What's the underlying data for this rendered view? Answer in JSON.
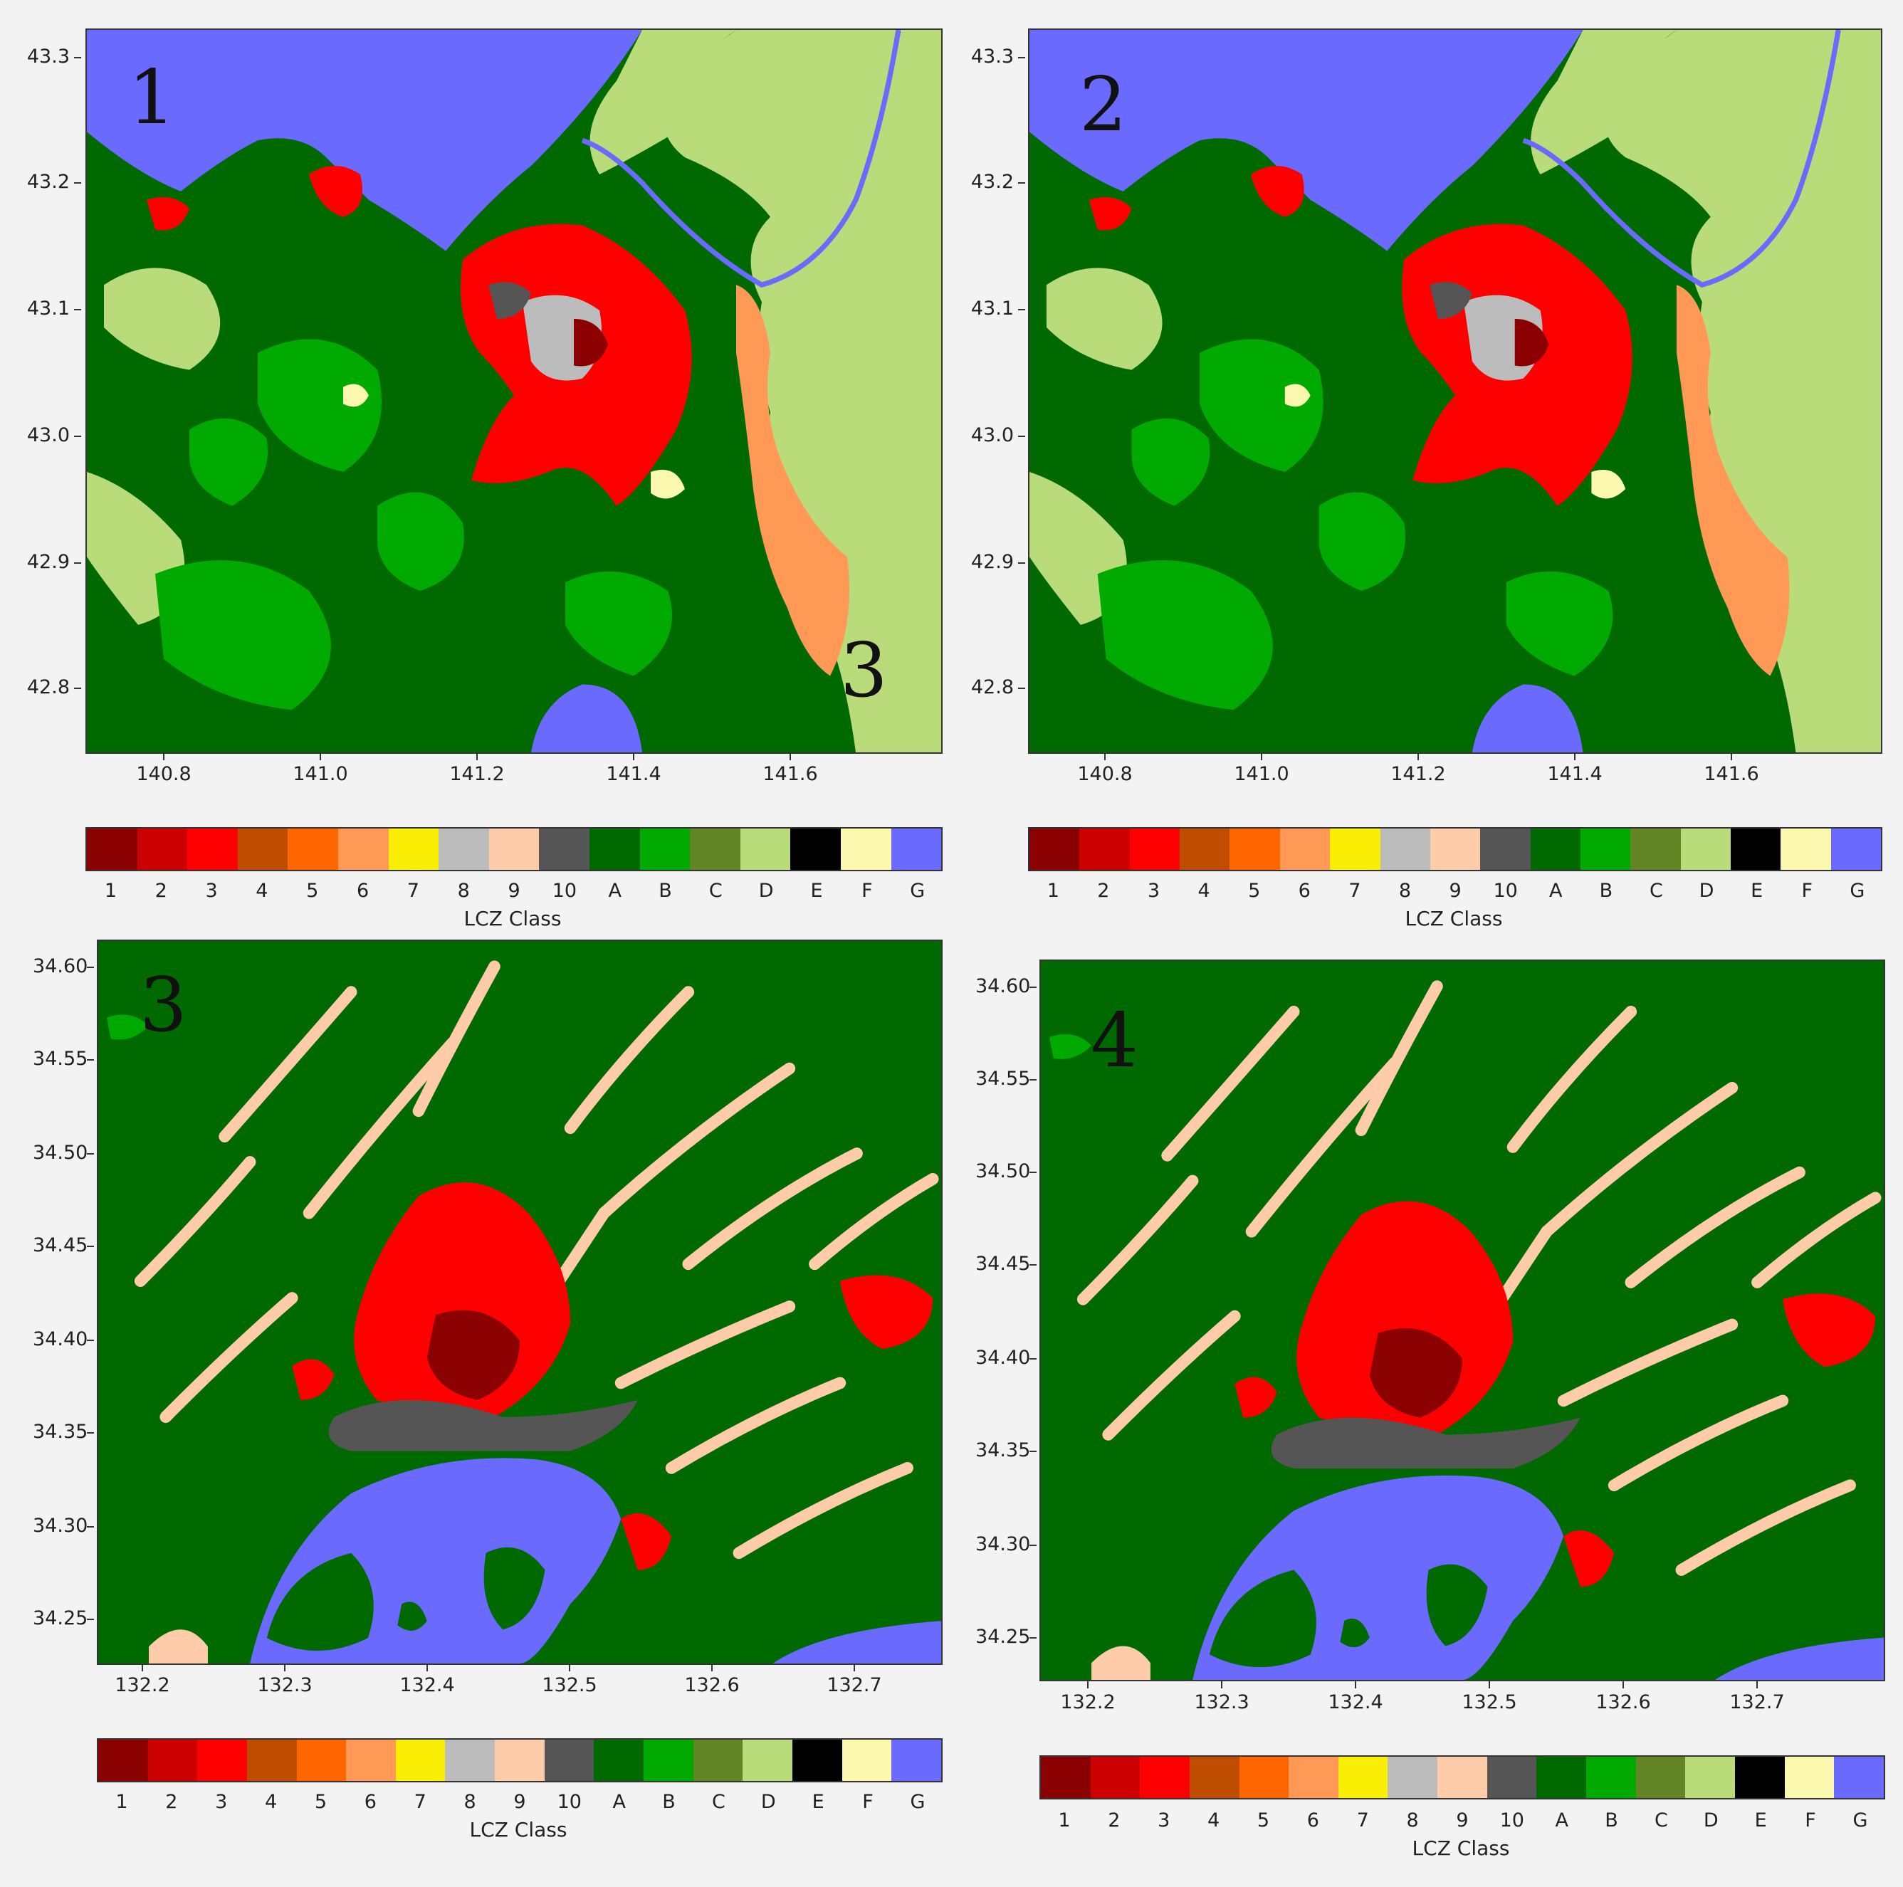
{
  "colorbar": {
    "title": "LCZ Class",
    "classes": [
      {
        "label": "1",
        "color": "#8b0000"
      },
      {
        "label": "2",
        "color": "#cc0000"
      },
      {
        "label": "3",
        "color": "#ff0000"
      },
      {
        "label": "4",
        "color": "#bf4d00"
      },
      {
        "label": "5",
        "color": "#ff6600"
      },
      {
        "label": "6",
        "color": "#ff9955"
      },
      {
        "label": "7",
        "color": "#faee05"
      },
      {
        "label": "8",
        "color": "#bcbcbc"
      },
      {
        "label": "9",
        "color": "#ffccaa"
      },
      {
        "label": "10",
        "color": "#555555"
      },
      {
        "label": "A",
        "color": "#006a00"
      },
      {
        "label": "B",
        "color": "#00aa00"
      },
      {
        "label": "C",
        "color": "#648525"
      },
      {
        "label": "D",
        "color": "#b9db79"
      },
      {
        "label": "E",
        "color": "#000000"
      },
      {
        "label": "F",
        "color": "#fbf7ae"
      },
      {
        "label": "G",
        "color": "#6a6aff"
      }
    ]
  },
  "panels": [
    {
      "number": "1",
      "inset_number": "3",
      "y_ticks": [
        "43.3",
        "43.2",
        "43.1",
        "43.0",
        "42.9",
        "42.8"
      ],
      "x_ticks": [
        "140.8",
        "141.0",
        "141.2",
        "141.4",
        "141.6"
      ]
    },
    {
      "number": "2",
      "y_ticks": [
        "43.3",
        "43.2",
        "43.1",
        "43.0",
        "42.9",
        "42.8"
      ],
      "x_ticks": [
        "140.8",
        "141.0",
        "141.2",
        "141.4",
        "141.6"
      ]
    },
    {
      "number": "3",
      "y_ticks": [
        "34.60",
        "34.55",
        "34.50",
        "34.45",
        "34.40",
        "34.35",
        "34.30",
        "34.25"
      ],
      "x_ticks": [
        "132.2",
        "132.3",
        "132.4",
        "132.5",
        "132.6",
        "132.7"
      ]
    },
    {
      "number": "4",
      "y_ticks": [
        "34.60",
        "34.55",
        "34.50",
        "34.45",
        "34.40",
        "34.35",
        "34.30",
        "34.25"
      ],
      "x_ticks": [
        "132.2",
        "132.3",
        "132.4",
        "132.5",
        "132.6",
        "132.7"
      ]
    }
  ]
}
